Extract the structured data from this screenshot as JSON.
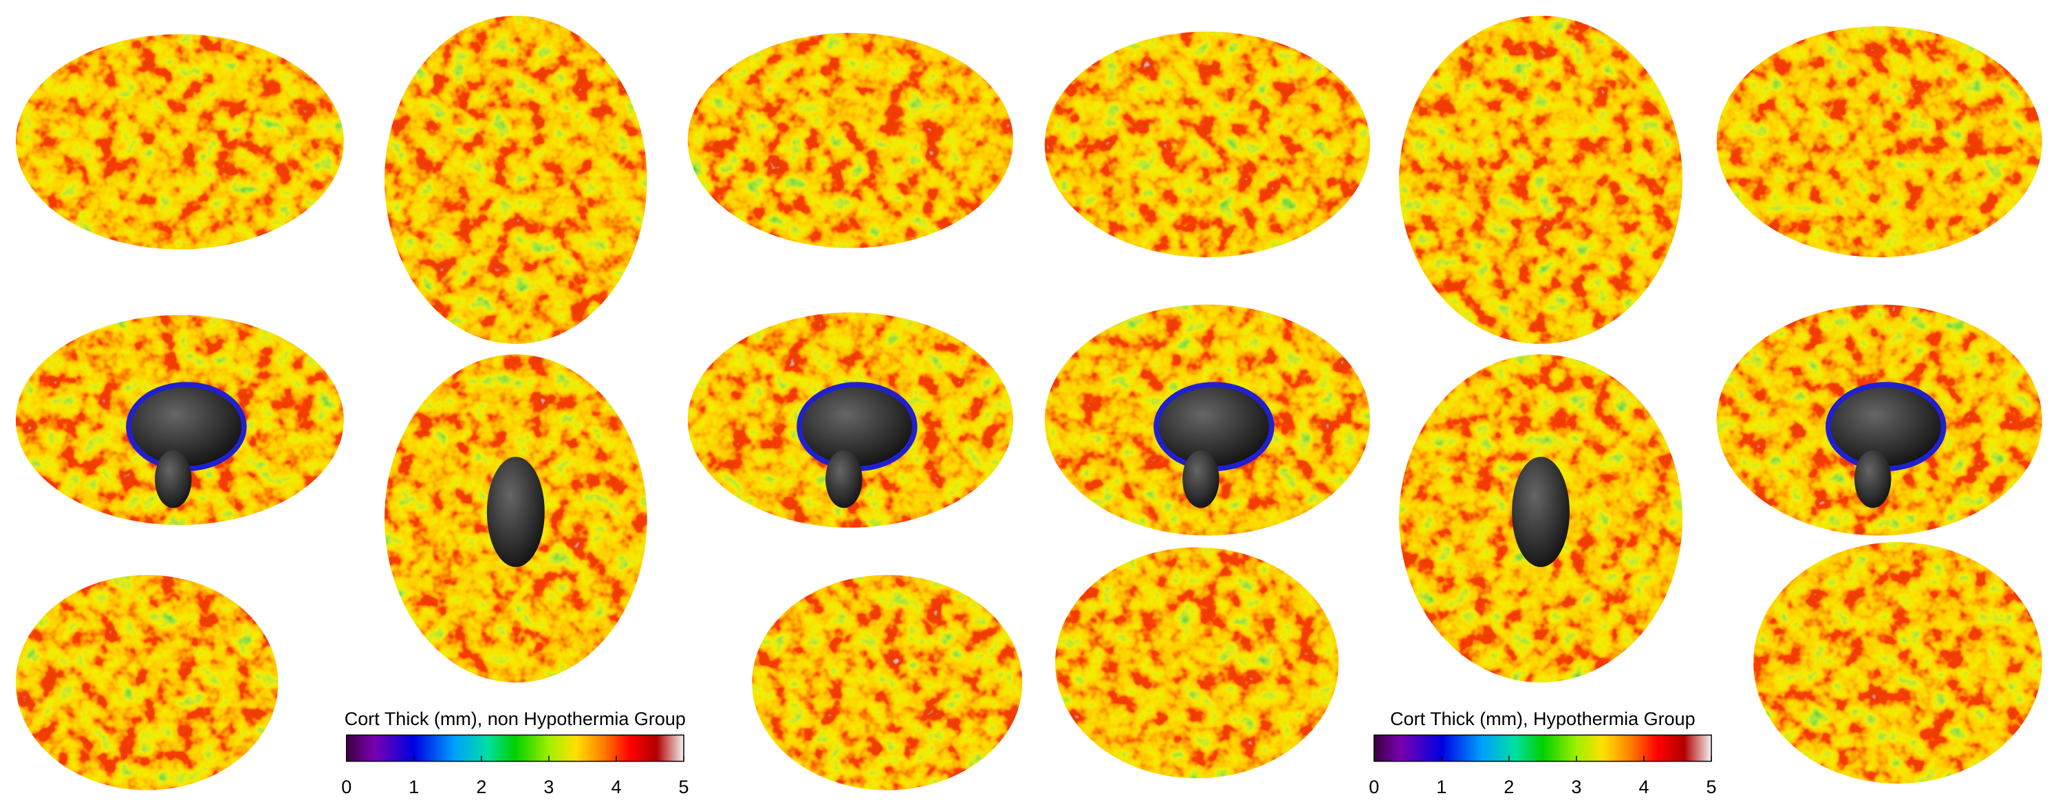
{
  "colorbars": [
    {
      "title": "Cort Thick (mm), non Hypothermia Group",
      "range": [
        0,
        5
      ],
      "ticks": [
        0,
        1,
        2,
        3,
        4,
        5
      ]
    },
    {
      "title": "Cort Thick (mm), Hypothermia Group",
      "range": [
        0,
        5
      ],
      "ticks": [
        0,
        1,
        2,
        3,
        4,
        5
      ]
    }
  ]
}
